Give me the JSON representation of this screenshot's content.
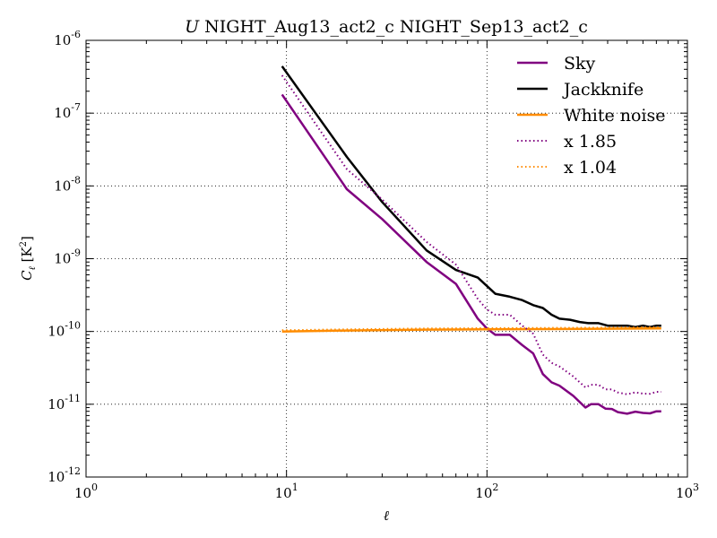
{
  "chart_data": {
    "type": "line",
    "title": "U NIGHT_Aug13_act2_c NIGHT_Sep13_act2_c",
    "title_italic_prefix": "U",
    "title_rest": " NIGHT_Aug13_act2_c NIGHT_Sep13_act2_c",
    "xlabel": "ℓ",
    "ylabel": "C_ℓ [K²]",
    "xscale": "log",
    "yscale": "log",
    "xlim": [
      1,
      1000
    ],
    "ylim": [
      1e-12,
      1e-06
    ],
    "grid": true,
    "legend_position": "top-right",
    "x_ticks": [
      {
        "value": 1,
        "base": "10",
        "exp": "0"
      },
      {
        "value": 10,
        "base": "10",
        "exp": "1"
      },
      {
        "value": 100,
        "base": "10",
        "exp": "2"
      },
      {
        "value": 1000,
        "base": "10",
        "exp": "3"
      }
    ],
    "y_ticks": [
      {
        "value": 1e-12,
        "base": "10",
        "exp": "-12"
      },
      {
        "value": 1e-11,
        "base": "10",
        "exp": "-11"
      },
      {
        "value": 1e-10,
        "base": "10",
        "exp": "-10"
      },
      {
        "value": 1e-09,
        "base": "10",
        "exp": "-9"
      },
      {
        "value": 1e-08,
        "base": "10",
        "exp": "-8"
      },
      {
        "value": 1e-07,
        "base": "10",
        "exp": "-7"
      },
      {
        "value": 1e-06,
        "base": "10",
        "exp": "-6"
      }
    ],
    "series": [
      {
        "name": "Sky",
        "color": "#800080",
        "style": "solid",
        "points": [
          [
            9.5,
            1.8e-07
          ],
          [
            20,
            9e-09
          ],
          [
            30,
            3.5e-09
          ],
          [
            50,
            9e-10
          ],
          [
            70,
            4.5e-10
          ],
          [
            90,
            1.5e-10
          ],
          [
            100,
            1.1e-10
          ],
          [
            110,
            9e-11
          ],
          [
            130,
            9e-11
          ],
          [
            150,
            6.5e-11
          ],
          [
            170,
            5e-11
          ],
          [
            190,
            2.6e-11
          ],
          [
            210,
            2e-11
          ],
          [
            230,
            1.8e-11
          ],
          [
            270,
            1.3e-11
          ],
          [
            310,
            9e-12
          ],
          [
            330,
            1e-11
          ],
          [
            360,
            1e-11
          ],
          [
            390,
            8.7e-12
          ],
          [
            420,
            8.6e-12
          ],
          [
            450,
            7.8e-12
          ],
          [
            500,
            7.4e-12
          ],
          [
            550,
            7.9e-12
          ],
          [
            600,
            7.6e-12
          ],
          [
            650,
            7.5e-12
          ],
          [
            700,
            8e-12
          ],
          [
            740,
            8e-12
          ]
        ]
      },
      {
        "name": "Jackknife",
        "color": "#000000",
        "style": "solid",
        "points": [
          [
            9.5,
            4.4e-07
          ],
          [
            20,
            2.5e-08
          ],
          [
            30,
            6e-09
          ],
          [
            50,
            1.3e-09
          ],
          [
            70,
            7e-10
          ],
          [
            90,
            5.5e-10
          ],
          [
            110,
            3.3e-10
          ],
          [
            130,
            3e-10
          ],
          [
            150,
            2.7e-10
          ],
          [
            170,
            2.3e-10
          ],
          [
            190,
            2.1e-10
          ],
          [
            210,
            1.7e-10
          ],
          [
            230,
            1.5e-10
          ],
          [
            260,
            1.45e-10
          ],
          [
            290,
            1.35e-10
          ],
          [
            320,
            1.3e-10
          ],
          [
            360,
            1.3e-10
          ],
          [
            400,
            1.2e-10
          ],
          [
            450,
            1.2e-10
          ],
          [
            500,
            1.2e-10
          ],
          [
            550,
            1.15e-10
          ],
          [
            600,
            1.2e-10
          ],
          [
            650,
            1.15e-10
          ],
          [
            700,
            1.2e-10
          ],
          [
            740,
            1.2e-10
          ]
        ]
      },
      {
        "name": "White noise",
        "color": "#ff8c00",
        "style": "solid",
        "points": [
          [
            9.5,
            1e-10
          ],
          [
            20,
            1.03e-10
          ],
          [
            50,
            1.06e-10
          ],
          [
            100,
            1.07e-10
          ],
          [
            200,
            1.08e-10
          ],
          [
            400,
            1.09e-10
          ],
          [
            740,
            1.1e-10
          ]
        ]
      },
      {
        "name": "x 1.85",
        "color": "#800080",
        "style": "dotted",
        "points": [
          [
            9.5,
            3.3e-07
          ],
          [
            20,
            1.7e-08
          ],
          [
            30,
            6.5e-09
          ],
          [
            50,
            1.7e-09
          ],
          [
            70,
            8.3e-10
          ],
          [
            90,
            2.8e-10
          ],
          [
            100,
            2e-10
          ],
          [
            110,
            1.7e-10
          ],
          [
            130,
            1.7e-10
          ],
          [
            150,
            1.2e-10
          ],
          [
            170,
            9.3e-11
          ],
          [
            190,
            4.8e-11
          ],
          [
            210,
            3.7e-11
          ],
          [
            230,
            3.3e-11
          ],
          [
            270,
            2.4e-11
          ],
          [
            310,
            1.7e-11
          ],
          [
            330,
            1.85e-11
          ],
          [
            360,
            1.85e-11
          ],
          [
            390,
            1.6e-11
          ],
          [
            420,
            1.6e-11
          ],
          [
            450,
            1.45e-11
          ],
          [
            500,
            1.37e-11
          ],
          [
            550,
            1.46e-11
          ],
          [
            600,
            1.4e-11
          ],
          [
            650,
            1.39e-11
          ],
          [
            700,
            1.48e-11
          ],
          [
            740,
            1.48e-11
          ]
        ]
      },
      {
        "name": "x 1.04",
        "color": "#ff8c00",
        "style": "dotted",
        "points": [
          [
            9.5,
            1.04e-10
          ],
          [
            20,
            1.07e-10
          ],
          [
            50,
            1.1e-10
          ],
          [
            100,
            1.11e-10
          ],
          [
            200,
            1.12e-10
          ],
          [
            400,
            1.13e-10
          ],
          [
            740,
            1.14e-10
          ]
        ]
      }
    ]
  }
}
